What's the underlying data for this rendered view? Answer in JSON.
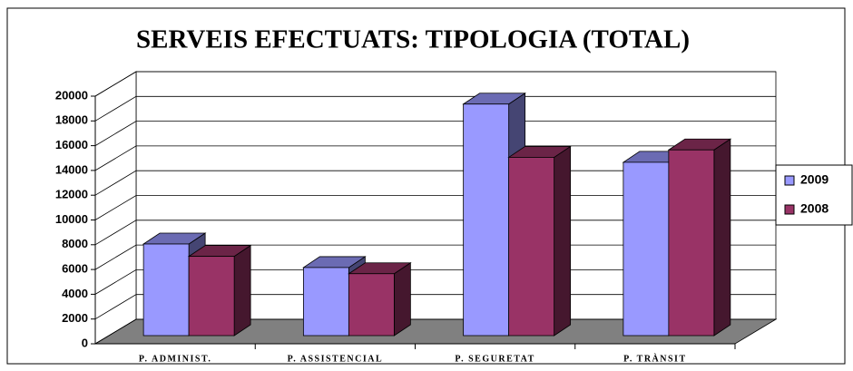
{
  "chart_data": {
    "type": "bar3d",
    "title": "SERVEIS EFECTUATS: TIPOLOGIA (TOTAL)",
    "categories": [
      "P. ADMINIST.",
      "P. ASSISTENCIAL",
      "P. SEGURETAT",
      "P. TRÀNSIT"
    ],
    "series": [
      {
        "name": "2009",
        "color": "#9999ff",
        "values": [
          7400,
          5500,
          18700,
          14000
        ]
      },
      {
        "name": "2008",
        "color": "#993366",
        "values": [
          6400,
          5000,
          14400,
          15000
        ]
      }
    ],
    "ylim": [
      0,
      20000
    ],
    "yticks": [
      0,
      2000,
      4000,
      6000,
      8000,
      10000,
      12000,
      14000,
      16000,
      18000,
      20000
    ],
    "grid": true,
    "legend": "right"
  }
}
